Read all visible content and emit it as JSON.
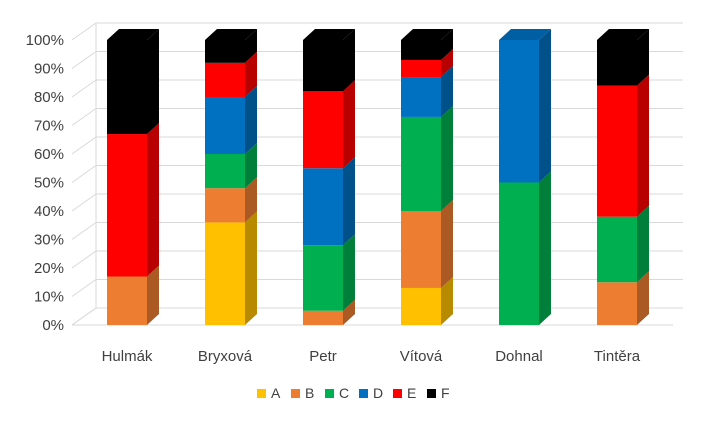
{
  "chart_data": {
    "type": "bar",
    "stacked": "percent",
    "three_d": true,
    "categories": [
      "Hulmák",
      "Bryxová",
      "Petr",
      "Vítová",
      "Dohnal",
      "Tintěra"
    ],
    "series": [
      {
        "name": "A",
        "color": "#FFC000",
        "values": [
          0,
          36,
          0,
          13,
          0,
          0
        ]
      },
      {
        "name": "B",
        "color": "#ED7D31",
        "values": [
          17,
          12,
          5,
          27,
          0,
          15
        ]
      },
      {
        "name": "C",
        "color": "#00B050",
        "values": [
          0,
          12,
          23,
          33,
          50,
          23
        ]
      },
      {
        "name": "D",
        "color": "#0070C0",
        "values": [
          0,
          20,
          27,
          14,
          50,
          0
        ]
      },
      {
        "name": "E",
        "color": "#FF0000",
        "values": [
          50,
          12,
          27,
          6,
          0,
          46
        ]
      },
      {
        "name": "F",
        "color": "#000000",
        "values": [
          33,
          8,
          18,
          7,
          0,
          16
        ]
      }
    ],
    "ylim": [
      0,
      100
    ],
    "yticks": [
      "0%",
      "10%",
      "20%",
      "30%",
      "40%",
      "50%",
      "60%",
      "70%",
      "80%",
      "90%",
      "100%"
    ],
    "grid": true,
    "legend": "bottom"
  }
}
